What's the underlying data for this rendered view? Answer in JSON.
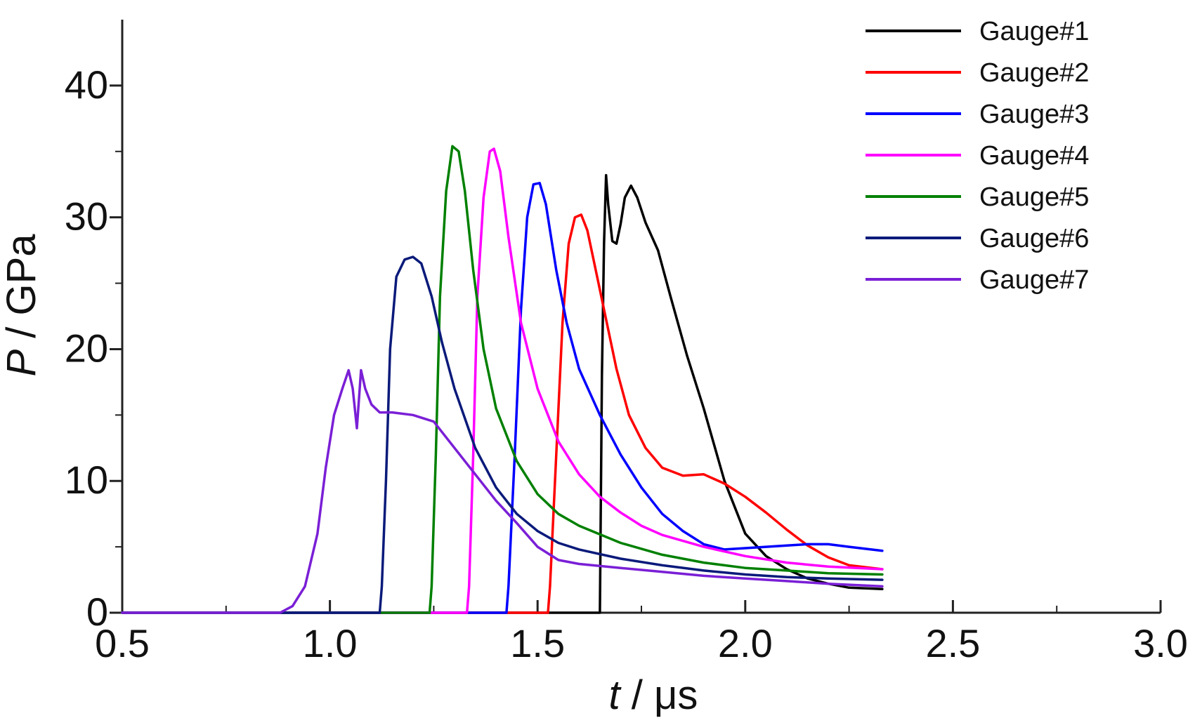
{
  "chart_data": {
    "type": "line",
    "xlabel": {
      "var": "t",
      "unit": " / μs"
    },
    "ylabel": {
      "var": "P",
      "unit": " / GPa"
    },
    "xlim": [
      0.5,
      3.0
    ],
    "ylim": [
      0,
      45
    ],
    "x_major_ticks": [
      0.5,
      1.0,
      1.5,
      2.0,
      2.5,
      3.0
    ],
    "x_tick_labels": [
      "0.5",
      "1.0",
      "1.5",
      "2.0",
      "2.5",
      "3.0"
    ],
    "y_major_ticks": [
      0,
      10,
      20,
      30,
      40
    ],
    "y_tick_labels": [
      "0",
      "10",
      "20",
      "30",
      "40"
    ],
    "grid": false,
    "legend_position": "top-right",
    "series": [
      {
        "name": "Gauge#1",
        "color": "#000000",
        "points": [
          [
            0.5,
            0
          ],
          [
            1.65,
            0
          ],
          [
            1.655,
            18
          ],
          [
            1.66,
            28
          ],
          [
            1.665,
            33.2
          ],
          [
            1.67,
            31
          ],
          [
            1.68,
            28.2
          ],
          [
            1.69,
            28
          ],
          [
            1.7,
            29.5
          ],
          [
            1.71,
            31.5
          ],
          [
            1.725,
            32.4
          ],
          [
            1.74,
            31.5
          ],
          [
            1.76,
            29.6
          ],
          [
            1.79,
            27.5
          ],
          [
            1.82,
            24
          ],
          [
            1.86,
            19.5
          ],
          [
            1.9,
            15.5
          ],
          [
            1.95,
            10
          ],
          [
            2.0,
            6
          ],
          [
            2.05,
            4.3
          ],
          [
            2.1,
            3.3
          ],
          [
            2.15,
            2.6
          ],
          [
            2.2,
            2.2
          ],
          [
            2.25,
            1.9
          ],
          [
            2.33,
            1.8
          ]
        ]
      },
      {
        "name": "Gauge#2",
        "color": "#ff0000",
        "points": [
          [
            0.5,
            0
          ],
          [
            1.525,
            0
          ],
          [
            1.53,
            2
          ],
          [
            1.545,
            12
          ],
          [
            1.56,
            22
          ],
          [
            1.575,
            28
          ],
          [
            1.59,
            30
          ],
          [
            1.605,
            30.2
          ],
          [
            1.62,
            29
          ],
          [
            1.64,
            26
          ],
          [
            1.66,
            23
          ],
          [
            1.69,
            18.5
          ],
          [
            1.72,
            15
          ],
          [
            1.76,
            12.5
          ],
          [
            1.8,
            11
          ],
          [
            1.85,
            10.4
          ],
          [
            1.9,
            10.5
          ],
          [
            1.95,
            9.8
          ],
          [
            2.0,
            8.8
          ],
          [
            2.05,
            7.6
          ],
          [
            2.1,
            6.3
          ],
          [
            2.15,
            5.1
          ],
          [
            2.2,
            4.2
          ],
          [
            2.25,
            3.6
          ],
          [
            2.33,
            3.3
          ]
        ]
      },
      {
        "name": "Gauge#3",
        "color": "#0000ff",
        "points": [
          [
            0.5,
            0
          ],
          [
            1.425,
            0
          ],
          [
            1.43,
            2
          ],
          [
            1.445,
            12
          ],
          [
            1.46,
            23
          ],
          [
            1.475,
            30
          ],
          [
            1.49,
            32.5
          ],
          [
            1.505,
            32.6
          ],
          [
            1.52,
            31
          ],
          [
            1.545,
            26
          ],
          [
            1.57,
            22
          ],
          [
            1.6,
            18.5
          ],
          [
            1.65,
            15
          ],
          [
            1.7,
            12
          ],
          [
            1.75,
            9.5
          ],
          [
            1.8,
            7.5
          ],
          [
            1.85,
            6.2
          ],
          [
            1.9,
            5.2
          ],
          [
            1.95,
            4.8
          ],
          [
            2.0,
            4.9
          ],
          [
            2.05,
            5.0
          ],
          [
            2.1,
            5.1
          ],
          [
            2.15,
            5.2
          ],
          [
            2.2,
            5.2
          ],
          [
            2.25,
            5.0
          ],
          [
            2.33,
            4.7
          ]
        ]
      },
      {
        "name": "Gauge#4",
        "color": "#ff00ff",
        "points": [
          [
            0.5,
            0
          ],
          [
            1.33,
            0
          ],
          [
            1.335,
            2
          ],
          [
            1.345,
            12
          ],
          [
            1.355,
            24
          ],
          [
            1.37,
            31.5
          ],
          [
            1.385,
            35
          ],
          [
            1.395,
            35.2
          ],
          [
            1.41,
            33.5
          ],
          [
            1.43,
            28.5
          ],
          [
            1.46,
            22
          ],
          [
            1.5,
            17
          ],
          [
            1.55,
            13
          ],
          [
            1.6,
            10.5
          ],
          [
            1.65,
            8.8
          ],
          [
            1.7,
            7.6
          ],
          [
            1.75,
            6.6
          ],
          [
            1.8,
            5.9
          ],
          [
            1.9,
            5.0
          ],
          [
            2.0,
            4.3
          ],
          [
            2.1,
            3.8
          ],
          [
            2.2,
            3.5
          ],
          [
            2.33,
            3.3
          ]
        ]
      },
      {
        "name": "Gauge#5",
        "color": "#008000",
        "points": [
          [
            0.5,
            0
          ],
          [
            1.24,
            0
          ],
          [
            1.245,
            2
          ],
          [
            1.255,
            12
          ],
          [
            1.265,
            24
          ],
          [
            1.28,
            32
          ],
          [
            1.295,
            35.4
          ],
          [
            1.31,
            35
          ],
          [
            1.325,
            32
          ],
          [
            1.345,
            26
          ],
          [
            1.37,
            20
          ],
          [
            1.4,
            15.5
          ],
          [
            1.45,
            11.5
          ],
          [
            1.5,
            9
          ],
          [
            1.55,
            7.5
          ],
          [
            1.6,
            6.6
          ],
          [
            1.7,
            5.3
          ],
          [
            1.8,
            4.4
          ],
          [
            1.9,
            3.8
          ],
          [
            2.0,
            3.4
          ],
          [
            2.1,
            3.2
          ],
          [
            2.2,
            3.0
          ],
          [
            2.33,
            2.9
          ]
        ]
      },
      {
        "name": "Gauge#6",
        "color": "#0a1a7a",
        "points": [
          [
            0.5,
            0
          ],
          [
            1.12,
            0
          ],
          [
            1.125,
            2
          ],
          [
            1.135,
            10
          ],
          [
            1.145,
            20
          ],
          [
            1.16,
            25.5
          ],
          [
            1.18,
            26.8
          ],
          [
            1.2,
            27
          ],
          [
            1.22,
            26.5
          ],
          [
            1.245,
            24
          ],
          [
            1.27,
            20.5
          ],
          [
            1.3,
            17
          ],
          [
            1.35,
            12.5
          ],
          [
            1.4,
            9.5
          ],
          [
            1.45,
            7.5
          ],
          [
            1.5,
            6.2
          ],
          [
            1.55,
            5.3
          ],
          [
            1.6,
            4.8
          ],
          [
            1.7,
            4.1
          ],
          [
            1.8,
            3.6
          ],
          [
            1.9,
            3.2
          ],
          [
            2.0,
            2.9
          ],
          [
            2.1,
            2.7
          ],
          [
            2.2,
            2.6
          ],
          [
            2.33,
            2.5
          ]
        ]
      },
      {
        "name": "Gauge#7",
        "color": "#7a1fd6",
        "points": [
          [
            0.5,
            0
          ],
          [
            0.88,
            0
          ],
          [
            0.91,
            0.5
          ],
          [
            0.94,
            2
          ],
          [
            0.97,
            6
          ],
          [
            0.99,
            11
          ],
          [
            1.01,
            15
          ],
          [
            1.03,
            17
          ],
          [
            1.045,
            18.4
          ],
          [
            1.055,
            17
          ],
          [
            1.065,
            14
          ],
          [
            1.075,
            18.4
          ],
          [
            1.085,
            17
          ],
          [
            1.1,
            15.8
          ],
          [
            1.12,
            15.2
          ],
          [
            1.15,
            15.2
          ],
          [
            1.2,
            15.0
          ],
          [
            1.25,
            14.5
          ],
          [
            1.3,
            12.5
          ],
          [
            1.35,
            10.5
          ],
          [
            1.4,
            8.5
          ],
          [
            1.45,
            6.8
          ],
          [
            1.5,
            5.0
          ],
          [
            1.55,
            4.0
          ],
          [
            1.6,
            3.7
          ],
          [
            1.7,
            3.4
          ],
          [
            1.8,
            3.1
          ],
          [
            1.9,
            2.8
          ],
          [
            2.0,
            2.6
          ],
          [
            2.1,
            2.4
          ],
          [
            2.2,
            2.2
          ],
          [
            2.33,
            2.0
          ]
        ]
      }
    ]
  }
}
